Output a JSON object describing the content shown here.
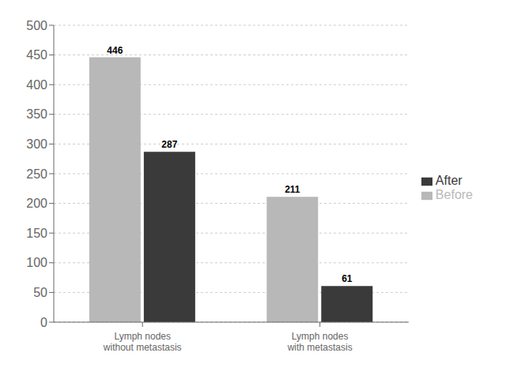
{
  "chart_data": {
    "type": "bar",
    "categories": [
      "Lymph nodes\nwithout metastasis",
      "Lymph nodes\nwith metastasis"
    ],
    "series": [
      {
        "name": "Before",
        "color": "#b8b8b8",
        "values": [
          446,
          211
        ]
      },
      {
        "name": "After",
        "color": "#3a3a3a",
        "values": [
          287,
          61
        ]
      }
    ],
    "ylim": [
      0,
      500
    ],
    "yticks": [
      0,
      50,
      100,
      150,
      200,
      250,
      300,
      350,
      400,
      450,
      500
    ],
    "grid": true,
    "legend": "right",
    "data_labels": true
  }
}
